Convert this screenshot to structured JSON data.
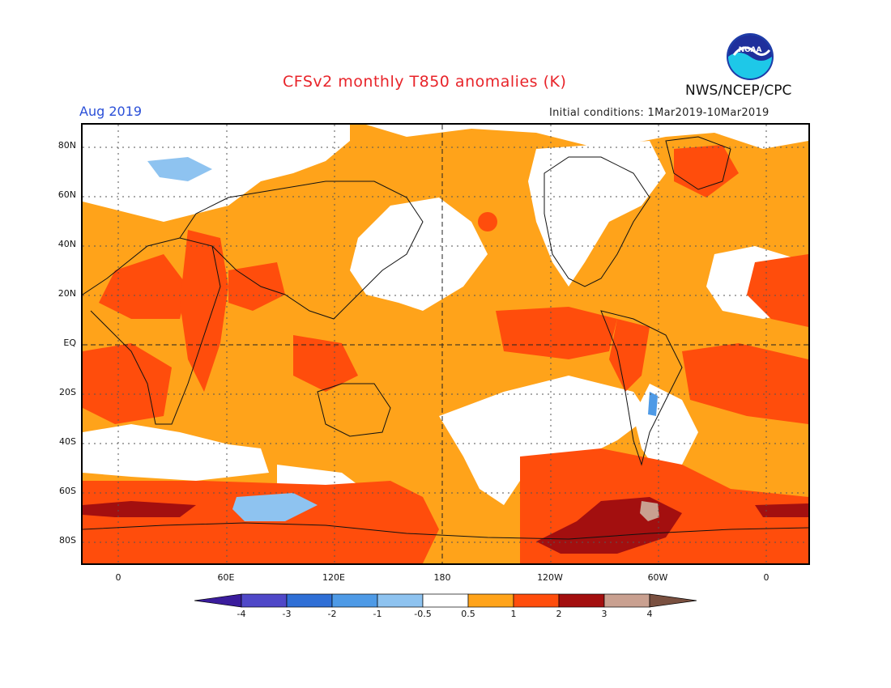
{
  "header": {
    "title": "CFSv2 monthly T850 anomalies (K)",
    "month": "Aug 2019",
    "initial_conditions": "Initial conditions: 1Mar2019-10Mar2019",
    "agency": "NWS/NCEP/CPC",
    "logo_text": "NOAA"
  },
  "map": {
    "lat_labels": [
      "80N",
      "60N",
      "40N",
      "20N",
      "EQ",
      "20S",
      "40S",
      "60S",
      "80S"
    ],
    "lon_labels": [
      "0",
      "60E",
      "120E",
      "180",
      "120W",
      "60W",
      "0"
    ],
    "colors": {
      "neg4": "#3a1c9c",
      "neg3": "#4f48c8",
      "neg2": "#2f6fd6",
      "neg1": "#4e9ae6",
      "neg05": "#8ec3f0",
      "neutral": "#ffffff",
      "pos05": "#ffa31a",
      "pos1": "#ff4d0c",
      "pos2": "#a30f0f",
      "pos3": "#c9a090",
      "pos4": "#7a5040"
    }
  },
  "colorbar": {
    "labels": [
      "-4",
      "-3",
      "-2",
      "-1",
      "-0.5",
      "0.5",
      "1",
      "2",
      "3",
      "4"
    ]
  }
}
